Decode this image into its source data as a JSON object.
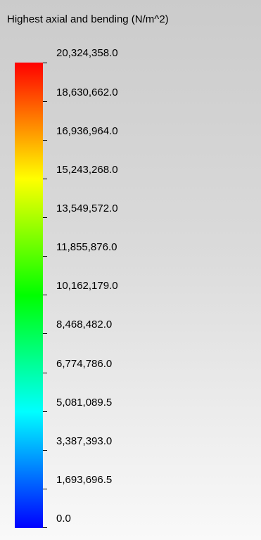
{
  "legend": {
    "title": "Highest axial and bending (N/m^2)",
    "colors": [
      "#ff0000",
      "#ff8000",
      "#ffff00",
      "#80ff00",
      "#00ff00",
      "#00ff80",
      "#00ffff",
      "#0080ff",
      "#0000ff"
    ],
    "ticks": [
      "20,324,358.0",
      "18,630,662.0",
      "16,936,964.0",
      "15,243,268.0",
      "13,549,572.0",
      "11,855,876.0",
      "10,162,179.0",
      "8,468,482.0",
      "6,774,786.0",
      "5,081,089.5",
      "3,387,393.0",
      "1,693,696.5",
      "0.0"
    ]
  }
}
